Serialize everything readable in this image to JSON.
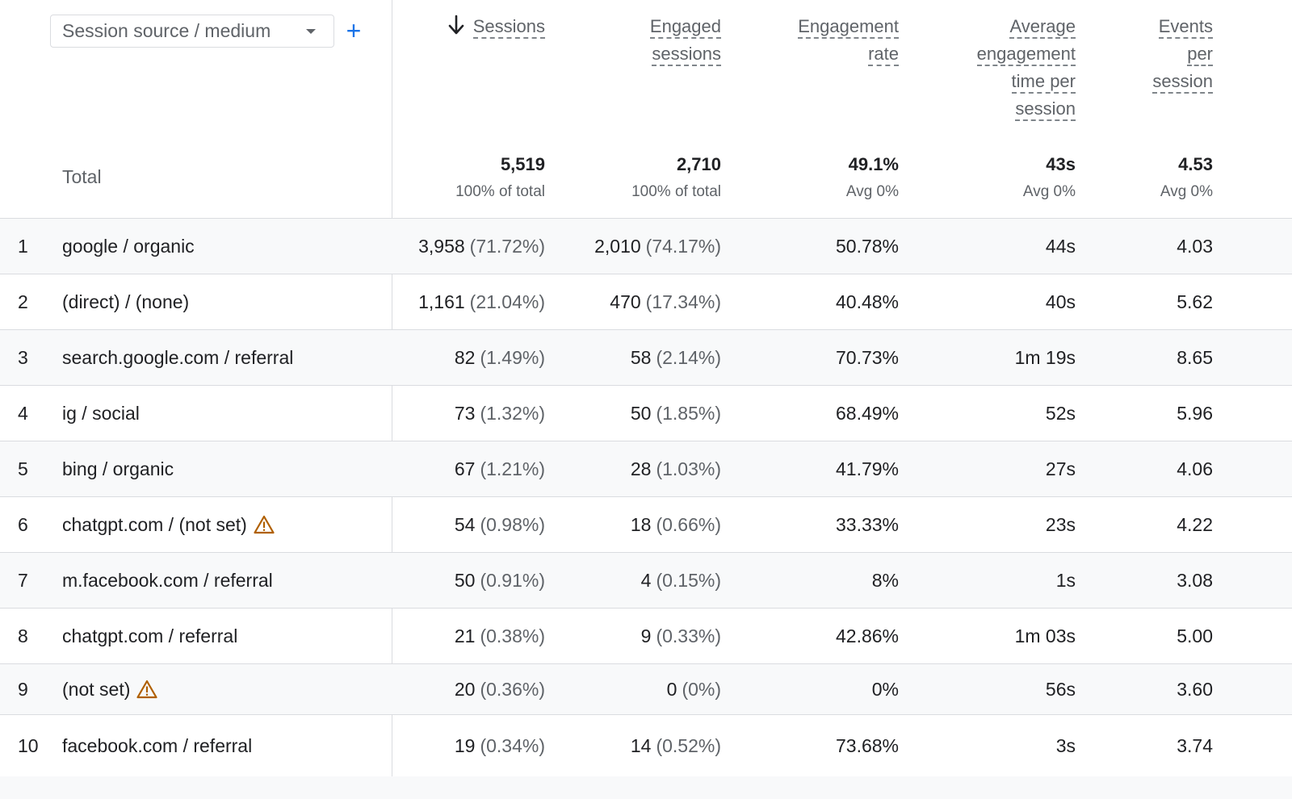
{
  "dimension": {
    "label": "Session source / medium",
    "add_icon": "plus-icon"
  },
  "columns": [
    {
      "key": "sessions",
      "lines": [
        "Sessions"
      ],
      "sorted": true
    },
    {
      "key": "engaged",
      "lines": [
        "Engaged",
        "sessions"
      ]
    },
    {
      "key": "rate",
      "lines": [
        "Engagement",
        "rate"
      ]
    },
    {
      "key": "time",
      "lines": [
        "Average",
        "engagement",
        "time per",
        "session"
      ]
    },
    {
      "key": "events",
      "lines": [
        "Events",
        "per",
        "session"
      ]
    }
  ],
  "totals": {
    "label": "Total",
    "sessions": {
      "value": "5,519",
      "sub": "100% of total"
    },
    "engaged": {
      "value": "2,710",
      "sub": "100% of total"
    },
    "rate": {
      "value": "49.1%",
      "sub": "Avg 0%"
    },
    "time": {
      "value": "43s",
      "sub": "Avg 0%"
    },
    "events": {
      "value": "4.53",
      "sub": "Avg 0%"
    }
  },
  "rows": [
    {
      "n": "1",
      "name": "google / organic",
      "warn": false,
      "sessions": "3,958",
      "sessions_pct": "(71.72%)",
      "engaged": "2,010",
      "engaged_pct": "(74.17%)",
      "rate": "50.78%",
      "time": "44s",
      "events": "4.03"
    },
    {
      "n": "2",
      "name": "(direct) / (none)",
      "warn": false,
      "sessions": "1,161",
      "sessions_pct": "(21.04%)",
      "engaged": "470",
      "engaged_pct": "(17.34%)",
      "rate": "40.48%",
      "time": "40s",
      "events": "5.62"
    },
    {
      "n": "3",
      "name": "search.google.com / referral",
      "warn": false,
      "sessions": "82",
      "sessions_pct": "(1.49%)",
      "engaged": "58",
      "engaged_pct": "(2.14%)",
      "rate": "70.73%",
      "time": "1m 19s",
      "events": "8.65"
    },
    {
      "n": "4",
      "name": "ig / social",
      "warn": false,
      "sessions": "73",
      "sessions_pct": "(1.32%)",
      "engaged": "50",
      "engaged_pct": "(1.85%)",
      "rate": "68.49%",
      "time": "52s",
      "events": "5.96"
    },
    {
      "n": "5",
      "name": "bing / organic",
      "warn": false,
      "sessions": "67",
      "sessions_pct": "(1.21%)",
      "engaged": "28",
      "engaged_pct": "(1.03%)",
      "rate": "41.79%",
      "time": "27s",
      "events": "4.06"
    },
    {
      "n": "6",
      "name": "chatgpt.com / (not set)",
      "warn": true,
      "sessions": "54",
      "sessions_pct": "(0.98%)",
      "engaged": "18",
      "engaged_pct": "(0.66%)",
      "rate": "33.33%",
      "time": "23s",
      "events": "4.22"
    },
    {
      "n": "7",
      "name": "m.facebook.com / referral",
      "warn": false,
      "sessions": "50",
      "sessions_pct": "(0.91%)",
      "engaged": "4",
      "engaged_pct": "(0.15%)",
      "rate": "8%",
      "time": "1s",
      "events": "3.08"
    },
    {
      "n": "8",
      "name": "chatgpt.com / referral",
      "warn": false,
      "sessions": "21",
      "sessions_pct": "(0.38%)",
      "engaged": "9",
      "engaged_pct": "(0.33%)",
      "rate": "42.86%",
      "time": "1m 03s",
      "events": "5.00"
    },
    {
      "n": "9",
      "name": "(not set)",
      "warn": true,
      "sessions": "20",
      "sessions_pct": "(0.36%)",
      "engaged": "0",
      "engaged_pct": "(0%)",
      "rate": "0%",
      "time": "56s",
      "events": "3.60"
    },
    {
      "n": "10",
      "name": "facebook.com / referral",
      "warn": false,
      "sessions": "19",
      "sessions_pct": "(0.34%)",
      "engaged": "14",
      "engaged_pct": "(0.52%)",
      "rate": "73.68%",
      "time": "3s",
      "events": "3.74"
    }
  ],
  "colors": {
    "accent": "#1a73e8",
    "warning": "#b06000",
    "alt_row": "#f8f9fa",
    "rule": "#dadce0"
  }
}
